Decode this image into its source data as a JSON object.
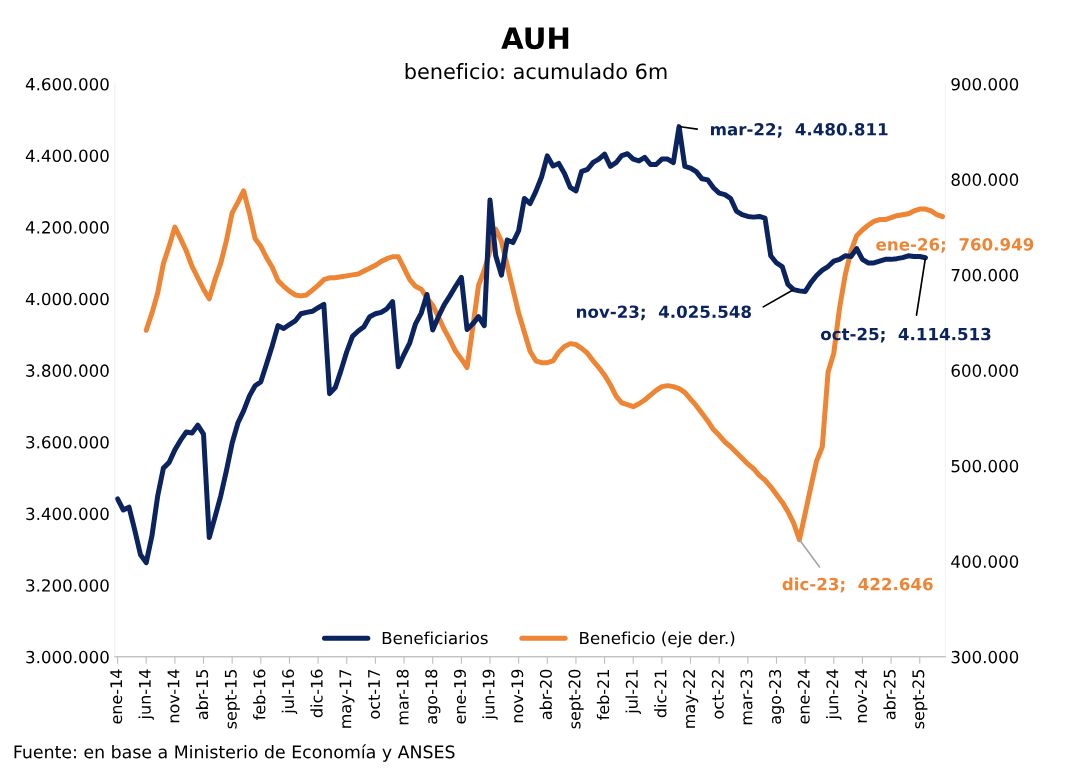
{
  "chart_data": {
    "type": "line",
    "title": "AUH",
    "subtitle": "beneficio: acumulado 6m",
    "categories": [
      "ene-14",
      null,
      null,
      null,
      null,
      "jun-14",
      null,
      null,
      null,
      null,
      "nov-14",
      null,
      null,
      null,
      null,
      "abr-15",
      null,
      null,
      null,
      null,
      "sept-15",
      null,
      null,
      null,
      null,
      "feb-16",
      null,
      null,
      null,
      null,
      "jul-16",
      null,
      null,
      null,
      null,
      "dic-16",
      null,
      null,
      null,
      null,
      "may-17",
      null,
      null,
      null,
      null,
      "oct-17",
      null,
      null,
      null,
      null,
      "mar-18",
      null,
      null,
      null,
      null,
      "ago-18",
      null,
      null,
      null,
      null,
      "ene-19",
      null,
      null,
      null,
      null,
      "jun-19",
      null,
      null,
      null,
      null,
      "nov-19",
      null,
      null,
      null,
      null,
      "abr-20",
      null,
      null,
      null,
      null,
      "sept-20",
      null,
      null,
      null,
      null,
      "feb-21",
      null,
      null,
      null,
      null,
      "jul-21",
      null,
      null,
      null,
      null,
      "dic-21",
      null,
      null,
      null,
      null,
      "may-22",
      null,
      null,
      null,
      null,
      "oct-22",
      null,
      null,
      null,
      null,
      "mar-23",
      null,
      null,
      null,
      null,
      "ago-23",
      null,
      null,
      null,
      null,
      "ene-24",
      null,
      null,
      null,
      null,
      "jun-24",
      null,
      null,
      null,
      null,
      "nov-24",
      null,
      null,
      null,
      null,
      "abr-25",
      null,
      null,
      null,
      null,
      "sept-25",
      null,
      null,
      null,
      null
    ],
    "series": [
      {
        "name": "Beneficiarios",
        "color": "#0b2460",
        "values": [
          3441000,
          3410000,
          3418000,
          3354000,
          3285000,
          3263000,
          3338000,
          3449000,
          3527000,
          3543000,
          3578000,
          3605000,
          3628000,
          3625000,
          3647000,
          3622000,
          3333000,
          3390000,
          3449000,
          3520000,
          3597000,
          3653000,
          3687000,
          3728000,
          3757000,
          3768000,
          3818000,
          3869000,
          3925000,
          3917000,
          3928000,
          3938000,
          3958000,
          3962000,
          3965000,
          3975000,
          3984000,
          3735000,
          3752000,
          3800000,
          3852000,
          3895000,
          3910000,
          3922000,
          3950000,
          3958000,
          3962000,
          3972000,
          3992000,
          3810000,
          3845000,
          3877000,
          3930000,
          3960000,
          4012000,
          3913000,
          3950000,
          3983000,
          4008000,
          4035000,
          4060000,
          3914000,
          3930000,
          3950000,
          3925000,
          4276000,
          4120000,
          4066000,
          4164000,
          4157000,
          4190000,
          4280000,
          4266000,
          4300000,
          4340000,
          4399000,
          4371000,
          4378000,
          4350000,
          4311000,
          4301000,
          4356000,
          4361000,
          4381000,
          4390000,
          4404000,
          4370000,
          4380000,
          4400000,
          4405000,
          4390000,
          4385000,
          4395000,
          4375000,
          4375000,
          4390000,
          4390000,
          4380000,
          4480811,
          4370000,
          4365000,
          4355000,
          4335000,
          4332000,
          4310000,
          4295000,
          4291000,
          4280000,
          4245000,
          4235000,
          4230000,
          4228000,
          4230000,
          4225000,
          4120000,
          4100000,
          4090000,
          4040000,
          4025548,
          4022000,
          4020000,
          4045000,
          4065000,
          4080000,
          4090000,
          4105000,
          4110000,
          4120000,
          4118000,
          4140000,
          4110000,
          4100000,
          4100000,
          4105000,
          4110000,
          4110000,
          4112000,
          4115000,
          4120000,
          4118000,
          4118000,
          4114513,
          null,
          null,
          null
        ],
        "value_labels": [
          null,
          null,
          null,
          null,
          null,
          null,
          null,
          null,
          null,
          null,
          null,
          null,
          null,
          null,
          null,
          null,
          null,
          null,
          null,
          null,
          null,
          null,
          null,
          null,
          null,
          null,
          null,
          null,
          null,
          null,
          null,
          null,
          null,
          null,
          null,
          null,
          null,
          null,
          null,
          null,
          null,
          null,
          null,
          null,
          null,
          null,
          null,
          null,
          null,
          null,
          null,
          null,
          null,
          null,
          null,
          null,
          null,
          null,
          null,
          null,
          null,
          null,
          null,
          null,
          null,
          null,
          null,
          null,
          null,
          null,
          null,
          null,
          null,
          null,
          null,
          null,
          null,
          null,
          null,
          null,
          null,
          null,
          null,
          null,
          null,
          null,
          null,
          null,
          null,
          null,
          null,
          null,
          null,
          null,
          null,
          null,
          null,
          null,
          "mar-22;  4.480.811",
          null,
          null,
          null,
          null,
          null,
          null,
          null,
          null,
          null,
          null,
          null,
          null,
          null,
          null,
          null,
          null,
          null,
          null,
          null,
          "nov-23;  4.025.548",
          null,
          null,
          null,
          null,
          null,
          null,
          null,
          null,
          null,
          null,
          null,
          null,
          null,
          null,
          null,
          null,
          null,
          null,
          null,
          null,
          null,
          null,
          "oct-25;  4.114.513",
          null,
          null,
          null
        ]
      },
      {
        "name": "Beneficio (eje der.)",
        "color": "#ed8535",
        "axis": "y2",
        "values": [
          null,
          null,
          null,
          null,
          null,
          642000,
          660000,
          681000,
          712000,
          730000,
          750000,
          738000,
          725000,
          709000,
          697000,
          685000,
          675000,
          695000,
          712000,
          736000,
          765000,
          776000,
          788000,
          765000,
          738000,
          730000,
          718000,
          708000,
          694000,
          688000,
          683000,
          679000,
          678000,
          679000,
          684000,
          689000,
          695000,
          697000,
          697000,
          698000,
          699000,
          700000,
          701000,
          704000,
          707000,
          710000,
          714000,
          717000,
          719000,
          719000,
          707000,
          695000,
          688000,
          685000,
          676000,
          668000,
          656000,
          643000,
          632000,
          620000,
          612000,
          603000,
          645000,
          689000,
          705000,
          725000,
          748000,
          735000,
          710000,
          685000,
          660000,
          640000,
          620000,
          610000,
          608000,
          608000,
          610000,
          619000,
          625000,
          628000,
          627000,
          623000,
          618000,
          610000,
          603000,
          595000,
          585000,
          573000,
          566000,
          564000,
          562000,
          565000,
          569000,
          574000,
          579000,
          583000,
          584000,
          583000,
          581000,
          577000,
          570000,
          563000,
          555000,
          547000,
          538000,
          532000,
          525000,
          520000,
          514000,
          508000,
          502000,
          497000,
          490000,
          485000,
          478000,
          470000,
          462000,
          452000,
          440000,
          422646,
          450000,
          478000,
          505000,
          520000,
          598000,
          618000,
          665000,
          700000,
          725000,
          741000,
          747000,
          752000,
          756000,
          758000,
          758000,
          760000,
          762000,
          763000,
          764000,
          767000,
          769000,
          769000,
          767000,
          763000,
          760949
        ],
        "value_labels": [
          null,
          null,
          null,
          null,
          null,
          null,
          null,
          null,
          null,
          null,
          null,
          null,
          null,
          null,
          null,
          null,
          null,
          null,
          null,
          null,
          null,
          null,
          null,
          null,
          null,
          null,
          null,
          null,
          null,
          null,
          null,
          null,
          null,
          null,
          null,
          null,
          null,
          null,
          null,
          null,
          null,
          null,
          null,
          null,
          null,
          null,
          null,
          null,
          null,
          null,
          null,
          null,
          null,
          null,
          null,
          null,
          null,
          null,
          null,
          null,
          null,
          null,
          null,
          null,
          null,
          null,
          null,
          null,
          null,
          null,
          null,
          null,
          null,
          null,
          null,
          null,
          null,
          null,
          null,
          null,
          null,
          null,
          null,
          null,
          null,
          null,
          null,
          null,
          null,
          null,
          null,
          null,
          null,
          null,
          null,
          null,
          null,
          null,
          null,
          null,
          null,
          null,
          null,
          null,
          null,
          null,
          null,
          null,
          null,
          null,
          null,
          null,
          null,
          null,
          null,
          null,
          null,
          null,
          null,
          "dic-23;  422.646",
          null,
          null,
          null,
          null,
          null,
          null,
          null,
          null,
          null,
          null,
          null,
          null,
          null,
          null,
          null,
          null,
          null,
          null,
          null,
          null,
          null,
          null,
          null,
          null,
          "ene-26;  760.949"
        ]
      }
    ],
    "ylim": [
      3000000,
      4600000
    ],
    "yticks": [
      {
        "value": 3000000,
        "label": "3.000.000"
      },
      {
        "value": 3200000,
        "label": "3.200.000"
      },
      {
        "value": 3400000,
        "label": "3.400.000"
      },
      {
        "value": 3600000,
        "label": "3.600.000"
      },
      {
        "value": 3800000,
        "label": "3.800.000"
      },
      {
        "value": 4000000,
        "label": "4.000.000"
      },
      {
        "value": 4200000,
        "label": "4.200.000"
      },
      {
        "value": 4400000,
        "label": "4.400.000"
      },
      {
        "value": 4600000,
        "label": "4.600.000"
      }
    ],
    "y2lim": [
      300000,
      900000
    ],
    "y2ticks": [
      {
        "value": 300000,
        "label": "300.000"
      },
      {
        "value": 400000,
        "label": "400.000"
      },
      {
        "value": 500000,
        "label": "500.000"
      },
      {
        "value": 600000,
        "label": "600.000"
      },
      {
        "value": 700000,
        "label": "700.000"
      },
      {
        "value": 800000,
        "label": "800.000"
      },
      {
        "value": 900000,
        "label": "900.000"
      }
    ],
    "grid": false,
    "legend": "bottom",
    "annotations": [
      "Fuente: en base a Ministerio de Economía y ANSES"
    ]
  }
}
